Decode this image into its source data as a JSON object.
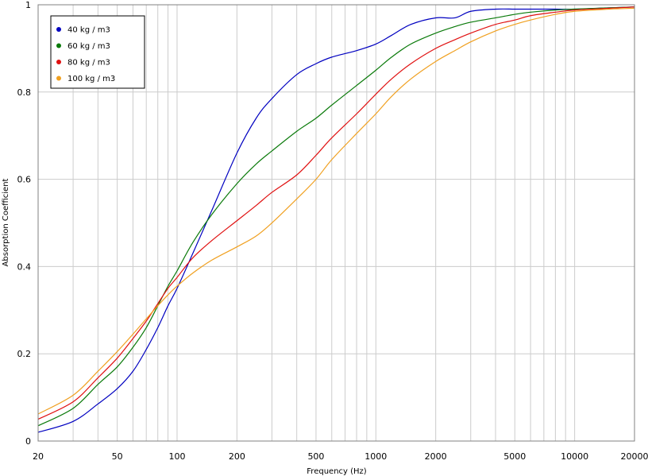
{
  "chart_data": {
    "type": "line",
    "title": "",
    "xlabel": "Frequency (Hz)",
    "ylabel": "Absorption Coefficient",
    "x_scale": "log",
    "xlim": [
      20,
      20000
    ],
    "ylim": [
      0,
      1
    ],
    "grid": true,
    "legend_position": "top-left",
    "x_ticks": [
      "20",
      "50",
      "100",
      "200",
      "500",
      "1000",
      "2000",
      "5000",
      "10000",
      "20000"
    ],
    "x_tick_values": [
      20,
      50,
      100,
      200,
      500,
      1000,
      2000,
      5000,
      10000,
      20000
    ],
    "y_ticks": [
      "0",
      "0.2",
      "0.4",
      "0.6",
      "0.8",
      "1"
    ],
    "y_tick_values": [
      0,
      0.2,
      0.4,
      0.6,
      0.8,
      1
    ],
    "x": [
      20,
      30,
      40,
      50,
      60,
      70,
      80,
      90,
      100,
      120,
      150,
      200,
      250,
      300,
      400,
      500,
      600,
      800,
      1000,
      1200,
      1500,
      2000,
      2500,
      3000,
      4000,
      5000,
      6000,
      8000,
      10000,
      15000,
      20000
    ],
    "series": [
      {
        "name": "40 kg / m3",
        "color": "#0000c0",
        "values": [
          0.02,
          0.045,
          0.085,
          0.12,
          0.16,
          0.21,
          0.26,
          0.31,
          0.35,
          0.43,
          0.53,
          0.66,
          0.74,
          0.785,
          0.84,
          0.865,
          0.88,
          0.895,
          0.91,
          0.93,
          0.955,
          0.97,
          0.97,
          0.985,
          0.99,
          0.99,
          0.99,
          0.99,
          0.99,
          0.993,
          0.995
        ]
      },
      {
        "name": "60 kg / m3",
        "color": "#0a7a0a",
        "values": [
          0.035,
          0.075,
          0.13,
          0.17,
          0.215,
          0.26,
          0.31,
          0.355,
          0.39,
          0.455,
          0.52,
          0.59,
          0.635,
          0.665,
          0.71,
          0.74,
          0.77,
          0.815,
          0.85,
          0.88,
          0.91,
          0.935,
          0.95,
          0.96,
          0.97,
          0.978,
          0.983,
          0.988,
          0.99,
          0.993,
          0.995
        ]
      },
      {
        "name": "80 kg / m3",
        "color": "#e01010",
        "values": [
          0.05,
          0.09,
          0.145,
          0.19,
          0.235,
          0.275,
          0.315,
          0.35,
          0.375,
          0.42,
          0.46,
          0.505,
          0.54,
          0.57,
          0.61,
          0.655,
          0.695,
          0.75,
          0.795,
          0.83,
          0.865,
          0.9,
          0.92,
          0.935,
          0.955,
          0.965,
          0.975,
          0.983,
          0.988,
          0.992,
          0.995
        ]
      },
      {
        "name": "100 kg / m3",
        "color": "#f0a020",
        "values": [
          0.062,
          0.105,
          0.16,
          0.205,
          0.245,
          0.28,
          0.31,
          0.335,
          0.355,
          0.385,
          0.415,
          0.445,
          0.47,
          0.5,
          0.555,
          0.6,
          0.645,
          0.705,
          0.75,
          0.79,
          0.83,
          0.87,
          0.895,
          0.915,
          0.94,
          0.955,
          0.965,
          0.978,
          0.985,
          0.99,
          0.992
        ]
      }
    ]
  }
}
